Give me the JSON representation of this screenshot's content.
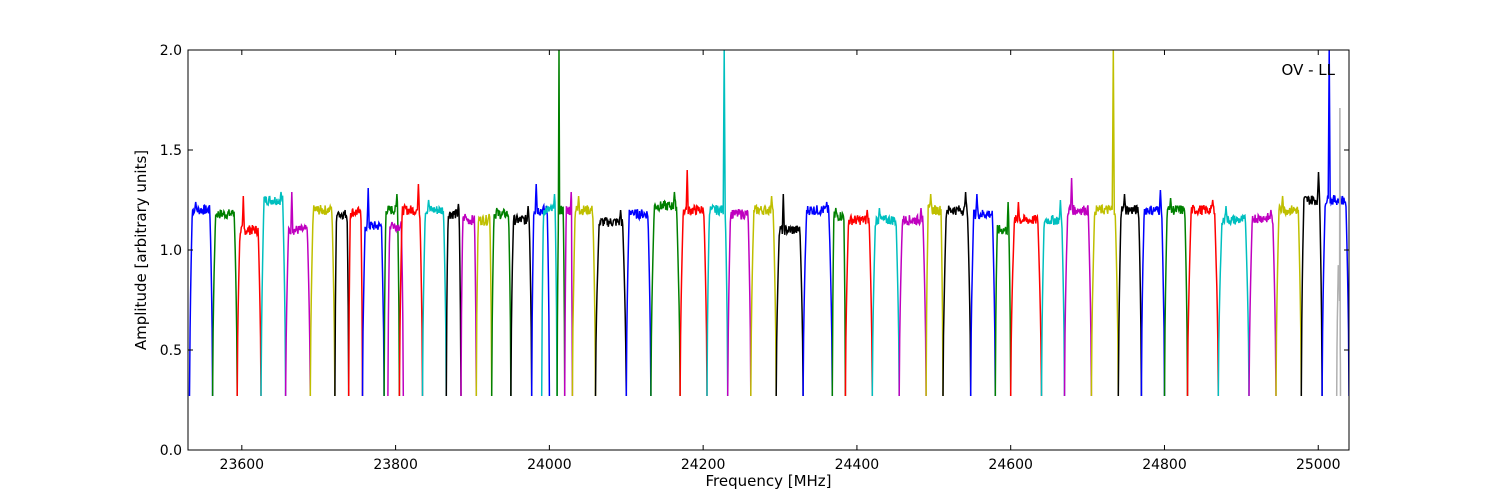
{
  "chart_data": {
    "type": "line",
    "title": "",
    "xlabel": "Frequency [MHz]",
    "ylabel": "Amplitude [arbitrary units]",
    "xlim": [
      23530,
      25040
    ],
    "ylim": [
      0.0,
      2.0
    ],
    "xticks": [
      23600,
      23800,
      24000,
      24200,
      24400,
      24600,
      24800,
      25000
    ],
    "yticks": [
      0.0,
      0.5,
      1.0,
      1.5,
      2.0
    ],
    "ytick_labels": [
      "0.0",
      "0.5",
      "1.0",
      "1.5",
      "2.0"
    ],
    "annotation": "OV - LL",
    "annotation_position": "top-right",
    "grid": false,
    "legend": "none",
    "band_shape": {
      "floor": 0.27,
      "note_values": "each series is one spectral band: steep edges dropping to about 0.27, passband near 1.1-1.3"
    },
    "series": [
      {
        "color": "#0000ff",
        "x0": 23532,
        "x1": 23562,
        "level": 1.2,
        "peak": 1.24
      },
      {
        "color": "#008000",
        "x0": 23562,
        "x1": 23594,
        "level": 1.18,
        "peak": 1.2
      },
      {
        "color": "#ff0000",
        "x0": 23594,
        "x1": 23625,
        "level": 1.1,
        "peak": 1.27
      },
      {
        "color": "#00bfbf",
        "x0": 23625,
        "x1": 23657,
        "level": 1.25,
        "peak": 1.29
      },
      {
        "color": "#bf00bf",
        "x0": 23657,
        "x1": 23689,
        "level": 1.1,
        "peak": 1.29
      },
      {
        "color": "#bfbf00",
        "x0": 23689,
        "x1": 23721,
        "level": 1.2,
        "peak": 1.22
      },
      {
        "color": "#000000",
        "x0": 23721,
        "x1": 23739,
        "level": 1.18,
        "peak": 1.19
      },
      {
        "color": "#ff0000",
        "x0": 23739,
        "x1": 23757,
        "level": 1.19,
        "peak": 1.2
      },
      {
        "color": "#0000ff",
        "x0": 23757,
        "x1": 23785,
        "level": 1.12,
        "peak": 1.31
      },
      {
        "color": "#008000",
        "x0": 23785,
        "x1": 23805,
        "level": 1.2,
        "peak": 1.28
      },
      {
        "color": "#bf00bf",
        "x0": 23790,
        "x1": 23810,
        "level": 1.12,
        "peak": 1.14
      },
      {
        "color": "#ff0000",
        "x0": 23805,
        "x1": 23835,
        "level": 1.2,
        "peak": 1.33
      },
      {
        "color": "#00bfbf",
        "x0": 23835,
        "x1": 23866,
        "level": 1.2,
        "peak": 1.25
      },
      {
        "color": "#000000",
        "x0": 23866,
        "x1": 23885,
        "level": 1.18,
        "peak": 1.23
      },
      {
        "color": "#bf00bf",
        "x0": 23885,
        "x1": 23905,
        "level": 1.15,
        "peak": 1.18
      },
      {
        "color": "#bfbf00",
        "x0": 23905,
        "x1": 23925,
        "level": 1.15,
        "peak": 1.18
      },
      {
        "color": "#008000",
        "x0": 23925,
        "x1": 23950,
        "level": 1.18,
        "peak": 1.21
      },
      {
        "color": "#000000",
        "x0": 23950,
        "x1": 23977,
        "level": 1.15,
        "peak": 1.22
      },
      {
        "color": "#0000ff",
        "x0": 23977,
        "x1": 24000,
        "level": 1.2,
        "peak": 1.33
      },
      {
        "color": "#00bfbf",
        "x0": 23990,
        "x1": 24010,
        "level": 1.2,
        "peak": 1.28
      },
      {
        "color": "#008000",
        "x0": 24010,
        "x1": 24020,
        "level": 1.2,
        "peak": 2.0
      },
      {
        "color": "#bf00bf",
        "x0": 24020,
        "x1": 24030,
        "level": 1.2,
        "peak": 1.29
      },
      {
        "color": "#bfbf00",
        "x0": 24030,
        "x1": 24060,
        "level": 1.2,
        "peak": 1.27
      },
      {
        "color": "#000000",
        "x0": 24060,
        "x1": 24100,
        "level": 1.14,
        "peak": 1.2
      },
      {
        "color": "#0000ff",
        "x0": 24100,
        "x1": 24132,
        "level": 1.18,
        "peak": 1.2
      },
      {
        "color": "#008000",
        "x0": 24132,
        "x1": 24170,
        "level": 1.22,
        "peak": 1.29
      },
      {
        "color": "#ff0000",
        "x0": 24170,
        "x1": 24205,
        "level": 1.2,
        "peak": 1.4
      },
      {
        "color": "#00bfbf",
        "x0": 24205,
        "x1": 24232,
        "level": 1.2,
        "peak": 2.0
      },
      {
        "color": "#bf00bf",
        "x0": 24232,
        "x1": 24262,
        "level": 1.18,
        "peak": 1.2
      },
      {
        "color": "#bfbf00",
        "x0": 24262,
        "x1": 24295,
        "level": 1.2,
        "peak": 1.27
      },
      {
        "color": "#000000",
        "x0": 24295,
        "x1": 24330,
        "level": 1.1,
        "peak": 1.28
      },
      {
        "color": "#0000ff",
        "x0": 24330,
        "x1": 24368,
        "level": 1.2,
        "peak": 1.24
      },
      {
        "color": "#008000",
        "x0": 24368,
        "x1": 24385,
        "level": 1.17,
        "peak": 1.21
      },
      {
        "color": "#ff0000",
        "x0": 24385,
        "x1": 24420,
        "level": 1.15,
        "peak": 1.2
      },
      {
        "color": "#00bfbf",
        "x0": 24420,
        "x1": 24455,
        "level": 1.15,
        "peak": 1.21
      },
      {
        "color": "#bf00bf",
        "x0": 24455,
        "x1": 24490,
        "level": 1.15,
        "peak": 1.21
      },
      {
        "color": "#bfbf00",
        "x0": 24490,
        "x1": 24512,
        "level": 1.2,
        "peak": 1.28
      },
      {
        "color": "#000000",
        "x0": 24512,
        "x1": 24548,
        "level": 1.2,
        "peak": 1.29
      },
      {
        "color": "#0000ff",
        "x0": 24548,
        "x1": 24580,
        "level": 1.18,
        "peak": 1.28
      },
      {
        "color": "#008000",
        "x0": 24580,
        "x1": 24600,
        "level": 1.1,
        "peak": 1.24
      },
      {
        "color": "#ff0000",
        "x0": 24600,
        "x1": 24640,
        "level": 1.15,
        "peak": 1.24
      },
      {
        "color": "#00bfbf",
        "x0": 24640,
        "x1": 24670,
        "level": 1.15,
        "peak": 1.25
      },
      {
        "color": "#bf00bf",
        "x0": 24670,
        "x1": 24705,
        "level": 1.2,
        "peak": 1.36
      },
      {
        "color": "#bfbf00",
        "x0": 24705,
        "x1": 24740,
        "level": 1.2,
        "peak": 2.0
      },
      {
        "color": "#000000",
        "x0": 24740,
        "x1": 24770,
        "level": 1.2,
        "peak": 1.28
      },
      {
        "color": "#0000ff",
        "x0": 24770,
        "x1": 24800,
        "level": 1.2,
        "peak": 1.3
      },
      {
        "color": "#008000",
        "x0": 24800,
        "x1": 24830,
        "level": 1.2,
        "peak": 1.26
      },
      {
        "color": "#ff0000",
        "x0": 24830,
        "x1": 24870,
        "level": 1.2,
        "peak": 1.25
      },
      {
        "color": "#00bfbf",
        "x0": 24870,
        "x1": 24910,
        "level": 1.15,
        "peak": 1.22
      },
      {
        "color": "#bf00bf",
        "x0": 24910,
        "x1": 24945,
        "level": 1.16,
        "peak": 1.2
      },
      {
        "color": "#bfbf00",
        "x0": 24945,
        "x1": 24978,
        "level": 1.2,
        "peak": 1.27
      },
      {
        "color": "#000000",
        "x0": 24978,
        "x1": 25005,
        "level": 1.25,
        "peak": 1.39
      },
      {
        "color": "#0000ff",
        "x0": 25005,
        "x1": 25040,
        "level": 1.25,
        "peak": 2.0
      },
      {
        "color": "#b0b0b0",
        "x0": 25024,
        "x1": 25029,
        "level": 0.9,
        "peak": 1.71
      }
    ]
  }
}
